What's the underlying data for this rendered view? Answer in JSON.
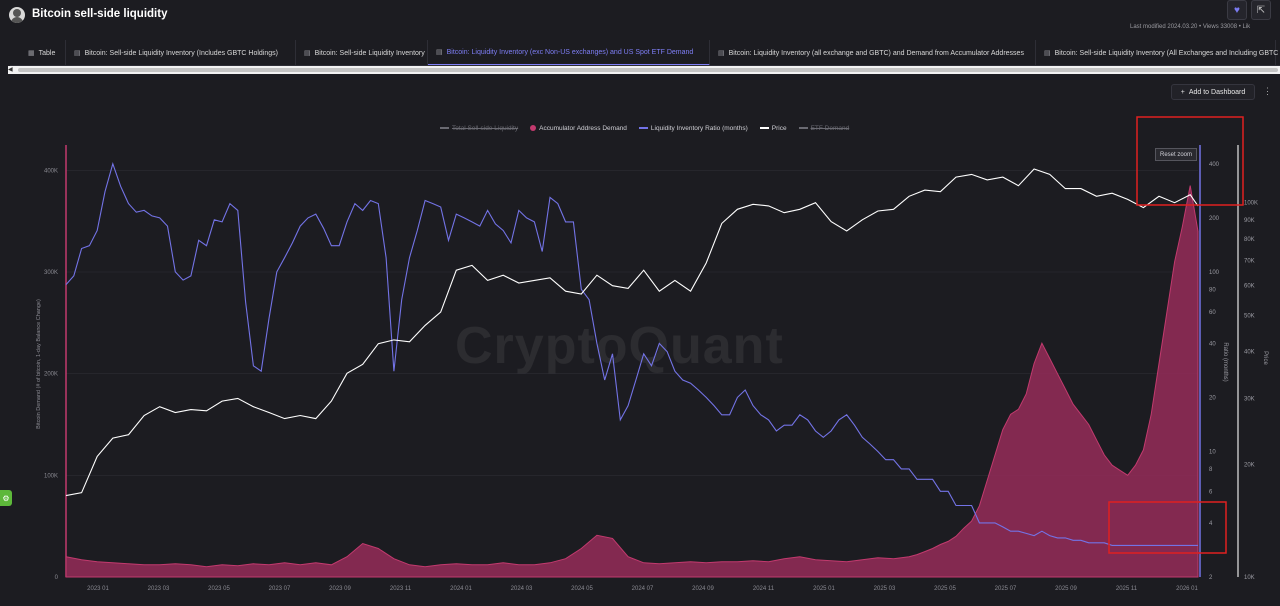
{
  "header": {
    "title": "Bitcoin sell-side liquidity",
    "meta": "Last modified 2024.03.20 • Views 33008 • Lik"
  },
  "tabs": [
    {
      "label": "Table",
      "icon": "table-icon"
    },
    {
      "label": "Bitcoin: Sell-side Liquidity Inventory (Includes GBTC Holdings)",
      "icon": "chart-icon"
    },
    {
      "label": "Bitcoin: Sell-side Liquidity Inventory",
      "icon": "chart-icon"
    },
    {
      "label": "Bitcoin: Liquidity Inventory (exc Non-US exchanges) and US Spot ETF Demand",
      "icon": "chart-icon",
      "active": true
    },
    {
      "label": "Bitcoin: Liquidity Inventory (all exchange and GBTC) and Demand from Accumulator Addresses",
      "icon": "chart-icon"
    },
    {
      "label": "Bitcoin: Sell-side Liquidity Inventory (All Exchanges and Including GBTC H",
      "icon": "chart-icon"
    }
  ],
  "toolbar": {
    "add_dashboard": "Add to Dashboard",
    "reset_zoom": "Reset zoom"
  },
  "watermark": "CryptoQuant",
  "colors": {
    "accent": "#7e7ef5",
    "demand": "#c23a6e",
    "ratio": "#7373e6",
    "price": "#ffffff"
  },
  "chart_data": {
    "type": "area",
    "legend": [
      {
        "name": "Total Sell-side Liquidity",
        "enabled": false
      },
      {
        "name": "Accumulator Address Demand",
        "enabled": true
      },
      {
        "name": "Liquidity Inventory Ratio (months)",
        "enabled": true
      },
      {
        "name": "Price",
        "enabled": true
      },
      {
        "name": "ETF Demand",
        "enabled": false
      }
    ],
    "x_ticks": [
      "2023 01",
      "2023 03",
      "2023 05",
      "2023 07",
      "2023 09",
      "2023 11",
      "2024 01",
      "2024 03",
      "2024 05",
      "2024 07",
      "2024 09",
      "2024 11",
      "2025 01",
      "2025 03",
      "2025 05",
      "2025 07",
      "2025 09",
      "2025 11",
      "2026 01"
    ],
    "y_left": {
      "label": "Bitcoin Demand (# of bitcoin, 1-day Balance Change)",
      "range": [
        0,
        420000
      ],
      "ticks": [
        "0",
        "100K",
        "200K",
        "300K",
        "400K"
      ]
    },
    "y_ratio": {
      "label": "Ratio (months)",
      "scale": "log",
      "range": [
        2,
        420
      ],
      "ticks": [
        "2",
        "4",
        "6",
        "8",
        "10",
        "20",
        "40",
        "60",
        "80",
        "100",
        "200",
        "400"
      ]
    },
    "y_price": {
      "label": "Price",
      "scale": "log",
      "range": [
        10000,
        130000
      ],
      "ticks": [
        "10K",
        "20K",
        "30K",
        "40K",
        "50K",
        "60K",
        "70K",
        "80K",
        "90K",
        "100K"
      ]
    },
    "series": [
      {
        "name": "Accumulator Address Demand",
        "x": [
          0,
          2,
          4,
          6,
          8,
          10,
          12,
          14,
          16,
          18,
          20,
          22,
          24,
          26,
          28,
          30,
          32,
          34,
          36,
          38,
          40,
          42,
          44,
          45,
          46,
          47,
          48,
          50,
          52,
          54,
          56,
          58,
          60,
          62,
          64,
          66,
          68,
          70,
          72,
          74,
          76,
          78,
          80,
          82,
          84,
          86,
          88,
          90,
          92,
          94,
          96,
          98,
          100,
          102,
          104,
          106,
          107,
          108,
          109,
          110,
          111,
          112,
          113,
          114,
          115,
          116,
          117,
          118,
          119,
          120,
          121,
          122,
          123,
          124,
          125,
          126,
          127,
          128,
          129,
          130,
          131,
          132,
          133,
          134,
          135,
          136,
          137,
          138,
          139,
          140,
          141,
          142,
          143,
          144,
          145
        ],
        "values": [
          20000,
          17000,
          15000,
          14000,
          13000,
          12000,
          12000,
          13000,
          12000,
          10000,
          12000,
          11000,
          13000,
          12000,
          14000,
          12000,
          14000,
          12000,
          20000,
          33000,
          28000,
          18000,
          12000,
          11000,
          10000,
          11000,
          12000,
          13000,
          12000,
          12000,
          14000,
          12000,
          12000,
          14000,
          18000,
          28000,
          41000,
          38000,
          20000,
          14000,
          13000,
          14000,
          15000,
          14000,
          15000,
          15000,
          16000,
          15000,
          18000,
          20000,
          17000,
          16000,
          15000,
          17000,
          19000,
          18000,
          19000,
          20000,
          22000,
          25000,
          28000,
          32000,
          35000,
          40000,
          48000,
          55000,
          70000,
          95000,
          120000,
          145000,
          160000,
          165000,
          180000,
          210000,
          230000,
          215000,
          200000,
          185000,
          170000,
          160000,
          150000,
          135000,
          120000,
          110000,
          105000,
          100000,
          110000,
          125000,
          160000,
          210000,
          260000,
          310000,
          345000,
          385000,
          340000
        ]
      },
      {
        "name": "Liquidity Inventory Ratio (months)",
        "x": [
          0,
          1,
          2,
          3,
          4,
          5,
          6,
          7,
          8,
          9,
          10,
          11,
          12,
          13,
          14,
          15,
          16,
          17,
          18,
          19,
          20,
          21,
          22,
          23,
          24,
          25,
          26,
          27,
          28,
          29,
          30,
          31,
          32,
          33,
          34,
          35,
          36,
          37,
          38,
          39,
          40,
          41,
          42,
          43,
          44,
          45,
          46,
          47,
          48,
          49,
          50,
          51,
          52,
          53,
          54,
          55,
          56,
          57,
          58,
          59,
          60,
          61,
          62,
          63,
          64,
          65,
          66,
          67,
          68,
          69,
          70,
          71,
          72,
          73,
          74,
          75,
          76,
          77,
          78,
          79,
          80,
          81,
          82,
          83,
          84,
          85,
          86,
          87,
          88,
          89,
          90,
          91,
          92,
          93,
          94,
          95,
          96,
          97,
          98,
          99,
          100,
          101,
          102,
          103,
          104,
          105,
          106,
          107,
          108,
          109,
          110,
          111,
          112,
          113,
          114,
          115,
          116,
          117,
          118,
          119,
          120,
          121,
          122,
          123,
          124,
          125,
          126,
          127,
          128,
          129,
          130,
          131,
          132,
          133,
          134,
          135,
          136,
          137,
          138,
          139,
          140,
          141,
          142,
          143,
          144,
          145
        ],
        "values": [
          85,
          95,
          135,
          140,
          170,
          280,
          400,
          300,
          240,
          215,
          220,
          205,
          200,
          180,
          100,
          90,
          95,
          150,
          140,
          195,
          190,
          240,
          220,
          68,
          30,
          28,
          55,
          100,
          120,
          145,
          180,
          200,
          210,
          175,
          140,
          140,
          190,
          240,
          220,
          250,
          240,
          120,
          28,
          70,
          120,
          170,
          250,
          240,
          230,
          150,
          210,
          200,
          190,
          180,
          220,
          185,
          170,
          145,
          220,
          200,
          190,
          130,
          260,
          240,
          190,
          190,
          80,
          70,
          40,
          25,
          35,
          15,
          18,
          25,
          35,
          30,
          40,
          36,
          28,
          25,
          24,
          22,
          20,
          18,
          16,
          16,
          20,
          22,
          18,
          16,
          15,
          13,
          14,
          14,
          16,
          15,
          13,
          12,
          13,
          15,
          16,
          14,
          12,
          11,
          10,
          9,
          9,
          8,
          8,
          7,
          7,
          7,
          6,
          6,
          5,
          5,
          5,
          4,
          4,
          4,
          3.8,
          3.6,
          3.6,
          3.5,
          3.4,
          3.6,
          3.4,
          3.3,
          3.3,
          3.2,
          3.2,
          3.1,
          3.1,
          3.1,
          3.0,
          3.0,
          3.0,
          3.0,
          3.0,
          3.0,
          3.0,
          3.0,
          3.0,
          3.0,
          3.0,
          3.0
        ]
      },
      {
        "name": "Price",
        "x": [
          0,
          2,
          4,
          6,
          8,
          10,
          12,
          14,
          16,
          18,
          20,
          22,
          24,
          26,
          28,
          30,
          32,
          34,
          36,
          38,
          40,
          42,
          44,
          46,
          48,
          50,
          52,
          54,
          56,
          58,
          60,
          62,
          64,
          66,
          68,
          70,
          72,
          74,
          76,
          78,
          80,
          82,
          84,
          86,
          88,
          90,
          92,
          94,
          96,
          98,
          100,
          102,
          104,
          106,
          108,
          110,
          112,
          114,
          116,
          118,
          120,
          122,
          124,
          126,
          128,
          130,
          132,
          134,
          136,
          138,
          140,
          142,
          144,
          145
        ],
        "values": [
          16500,
          16800,
          21000,
          23500,
          24000,
          27000,
          28500,
          27500,
          28000,
          27800,
          29500,
          30000,
          28500,
          27500,
          26500,
          27000,
          26500,
          29500,
          35000,
          37000,
          42000,
          43000,
          42500,
          47000,
          51000,
          66000,
          68000,
          62000,
          64000,
          61000,
          62000,
          63000,
          58000,
          57000,
          64000,
          60000,
          59000,
          66000,
          58000,
          62000,
          58000,
          69000,
          88000,
          96000,
          99000,
          98000,
          94000,
          96000,
          100000,
          89000,
          84000,
          90000,
          95000,
          96000,
          104000,
          108000,
          107000,
          117000,
          119000,
          115000,
          117000,
          111000,
          123000,
          119000,
          109000,
          109000,
          104000,
          106000,
          102000,
          97000,
          104000,
          100000,
          105000,
          98000
        ]
      }
    ]
  }
}
